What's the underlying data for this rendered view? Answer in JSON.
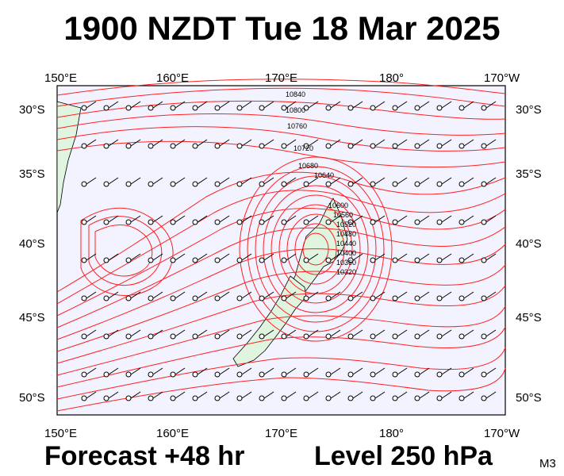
{
  "title": "1900 NZDT Tue 18 Mar 2025",
  "lon_labels": [
    "150°E",
    "160°E",
    "170°E",
    "180°",
    "170°W"
  ],
  "lat_labels": [
    "30°S",
    "35°S",
    "40°S",
    "45°S",
    "50°S"
  ],
  "contour_labels": [
    "10840",
    "10800",
    "10760",
    "10720",
    "10680",
    "10640",
    "10600",
    "10560",
    "10520",
    "10480",
    "10440",
    "10400",
    "10360",
    "10320"
  ],
  "footer": {
    "forecast": "Forecast +48 hr",
    "level": "Level 250 hPa",
    "code": "M3"
  },
  "colors": {
    "contour": "#ff2020",
    "land": "#e0f5e0",
    "ocean": "#f3f3ff",
    "barb": "#000000"
  }
}
